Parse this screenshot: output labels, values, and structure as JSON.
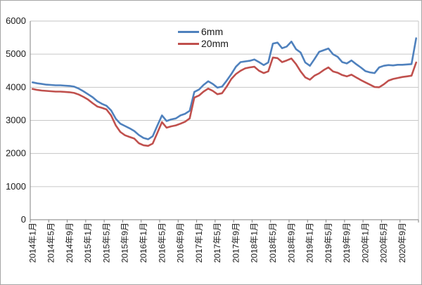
{
  "chart_data": {
    "type": "line",
    "title": "",
    "x_interval": "monthly",
    "x_start": "2014年1月",
    "x_end": "2020年12月",
    "x_tick_labels": [
      "2014年1月",
      "2014年5月",
      "2014年9月",
      "2015年1月",
      "2015年5月",
      "2015年9月",
      "2016年1月",
      "2016年5月",
      "2016年9月",
      "2017年1月",
      "2017年5月",
      "2017年9月",
      "2018年1月",
      "2018年5月",
      "2018年9月",
      "2019年1月",
      "2019年5月",
      "2019年9月",
      "2020年1月",
      "2020年5月",
      "2020年9月"
    ],
    "x_label_every_n_points": 4,
    "y_ticks": [
      0,
      1000,
      2000,
      3000,
      4000,
      5000,
      6000
    ],
    "y_tick_labels": [
      "0",
      "1000",
      "2000",
      "3000",
      "4000",
      "5000",
      "6000"
    ],
    "ylim": [
      0,
      6000
    ],
    "grid": true,
    "legend_position": "top-center-inside",
    "series": [
      {
        "name": "6mm",
        "color": "#4F81BD",
        "values": [
          4150,
          4120,
          4100,
          4080,
          4070,
          4060,
          4060,
          4050,
          4040,
          4020,
          3960,
          3880,
          3790,
          3700,
          3580,
          3500,
          3440,
          3300,
          3050,
          2900,
          2830,
          2760,
          2680,
          2560,
          2470,
          2430,
          2520,
          2840,
          3150,
          2980,
          3030,
          3060,
          3150,
          3200,
          3290,
          3860,
          3930,
          4070,
          4180,
          4100,
          3990,
          4020,
          4200,
          4400,
          4620,
          4760,
          4780,
          4800,
          4840,
          4760,
          4670,
          4750,
          5320,
          5350,
          5180,
          5230,
          5380,
          5150,
          5050,
          4750,
          4650,
          4850,
          5070,
          5120,
          5170,
          5000,
          4920,
          4760,
          4720,
          4810,
          4700,
          4600,
          4490,
          4450,
          4430,
          4600,
          4650,
          4670,
          4660,
          4680,
          4680,
          4690,
          4700,
          5480
        ]
      },
      {
        "name": "20mm",
        "color": "#C0504D",
        "values": [
          3950,
          3920,
          3900,
          3890,
          3880,
          3870,
          3870,
          3860,
          3850,
          3830,
          3780,
          3710,
          3630,
          3520,
          3420,
          3380,
          3330,
          3150,
          2850,
          2650,
          2550,
          2500,
          2450,
          2310,
          2250,
          2230,
          2300,
          2620,
          2950,
          2780,
          2820,
          2850,
          2900,
          2960,
          3060,
          3690,
          3750,
          3870,
          3960,
          3890,
          3790,
          3820,
          4020,
          4250,
          4400,
          4500,
          4570,
          4600,
          4620,
          4500,
          4430,
          4480,
          4900,
          4880,
          4760,
          4810,
          4870,
          4700,
          4480,
          4300,
          4230,
          4350,
          4420,
          4520,
          4600,
          4480,
          4440,
          4370,
          4330,
          4380,
          4300,
          4220,
          4150,
          4080,
          4010,
          4000,
          4090,
          4200,
          4250,
          4280,
          4310,
          4330,
          4350,
          4750
        ]
      }
    ]
  },
  "colors": {
    "grid_line": "#c6c6c6",
    "axis_line": "#808080",
    "plot_border": "#c6c6c6",
    "text": "#1a1a1a",
    "background": "#ffffff"
  },
  "layout_values": {
    "y_label_font_px": 13,
    "x_label_font_px": 12
  }
}
